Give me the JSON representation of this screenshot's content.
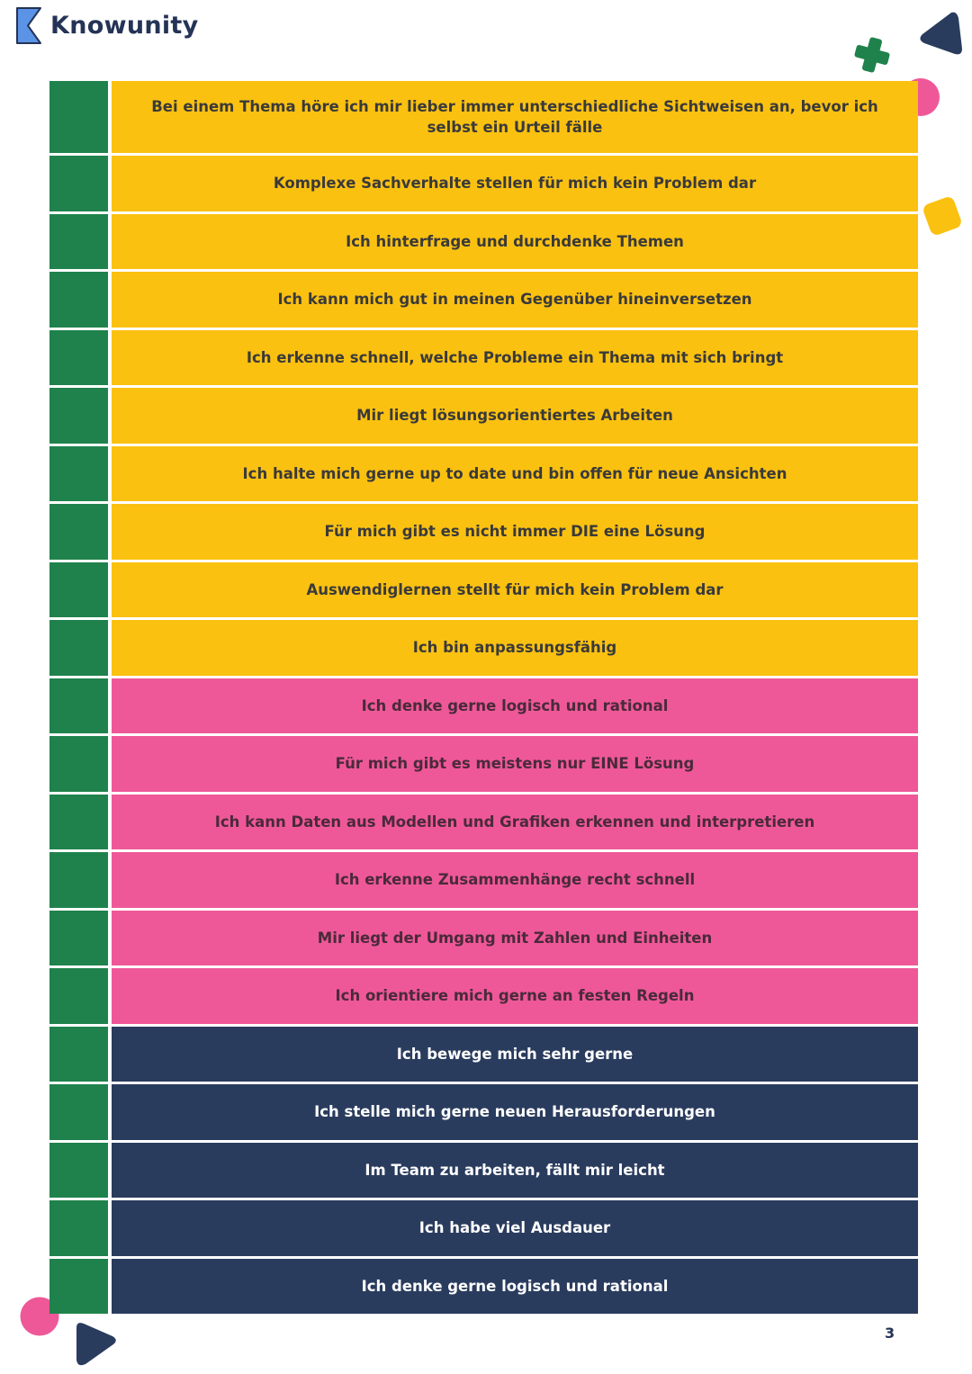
{
  "header": {
    "brand": "Knowunity",
    "logo_icon": "knowunity-k-logo"
  },
  "colors": {
    "yellow": "#fbc111",
    "pink": "#ef5898",
    "navy": "#2a3c5e",
    "green": "#1f824c",
    "text_dark": "#3a3a3a",
    "text_light": "#ffffff"
  },
  "rows": [
    {
      "text": "Bei einem Thema höre ich mir lieber immer unterschiedliche Sichtweisen an, bevor ich selbst ein Urteil fälle",
      "color": "yellow"
    },
    {
      "text": "Komplexe Sachverhalte stellen für mich kein Problem dar",
      "color": "yellow"
    },
    {
      "text": "Ich hinterfrage und durchdenke Themen",
      "color": "yellow"
    },
    {
      "text": "Ich kann mich gut in meinen Gegenüber hineinversetzen",
      "color": "yellow"
    },
    {
      "text": "Ich erkenne schnell, welche Probleme ein Thema mit sich bringt",
      "color": "yellow"
    },
    {
      "text": "Mir liegt lösungsorientiertes Arbeiten",
      "color": "yellow"
    },
    {
      "text": "Ich halte mich gerne up to date und bin offen für neue Ansichten",
      "color": "yellow"
    },
    {
      "text": "Für mich gibt es nicht immer DIE eine Lösung",
      "color": "yellow"
    },
    {
      "text": "Auswendiglernen stellt für mich kein Problem dar",
      "color": "yellow"
    },
    {
      "text": "Ich bin anpassungsfähig",
      "color": "yellow"
    },
    {
      "text": "Ich denke gerne logisch und rational",
      "color": "pink"
    },
    {
      "text": "Für mich gibt es meistens nur EINE Lösung",
      "color": "pink"
    },
    {
      "text": "Ich kann Daten aus Modellen und Grafiken erkennen und interpretieren",
      "color": "pink"
    },
    {
      "text": "Ich erkenne Zusammenhänge recht schnell",
      "color": "pink"
    },
    {
      "text": "Mir liegt der Umgang mit Zahlen und Einheiten",
      "color": "pink"
    },
    {
      "text": "Ich orientiere mich gerne an festen Regeln",
      "color": "pink"
    },
    {
      "text": "Ich bewege mich sehr gerne",
      "color": "navy"
    },
    {
      "text": "Ich stelle mich gerne neuen Herausforderungen",
      "color": "navy"
    },
    {
      "text": "Im Team zu arbeiten, fällt mir leicht",
      "color": "navy"
    },
    {
      "text": "Ich habe viel Ausdauer",
      "color": "navy"
    },
    {
      "text": "Ich denke gerne logisch und rational",
      "color": "navy"
    }
  ],
  "footer": {
    "page_number": "3"
  }
}
